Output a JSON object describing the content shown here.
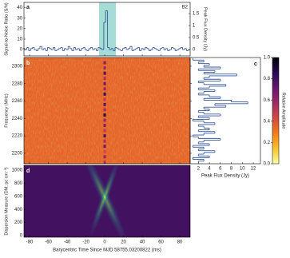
{
  "chart_data": [
    {
      "type": "step",
      "label": "a",
      "annotation": "B2",
      "ylabel": "Signal-to-Noise Ratio (S/N)",
      "y2label": "Peak Flux Density (Jy)",
      "x": [
        -86,
        -84,
        -82,
        -80,
        -78,
        -76,
        -74,
        -72,
        -70,
        -68,
        -66,
        -64,
        -62,
        -60,
        -58,
        -56,
        -54,
        -52,
        -50,
        -48,
        -46,
        -44,
        -42,
        -40,
        -38,
        -36,
        -34,
        -32,
        -30,
        -28,
        -26,
        -24,
        -22,
        -20,
        -18,
        -16,
        -14,
        -12,
        -10,
        -8,
        -6,
        -4,
        -2,
        0,
        2,
        4,
        6,
        8,
        10,
        12,
        14,
        16,
        18,
        20,
        22,
        24,
        26,
        28,
        30,
        32,
        34,
        36,
        38,
        40,
        42,
        44,
        46,
        48,
        50,
        52,
        54,
        56,
        58,
        60,
        62,
        64,
        66,
        68,
        70,
        72,
        74,
        76,
        78,
        80,
        82,
        84,
        86,
        88,
        90
      ],
      "series": [
        {
          "color": "#3a5a98",
          "values": [
            1,
            0,
            2,
            -1,
            1,
            2,
            0,
            -1,
            1,
            3,
            0,
            1,
            -1,
            2,
            1,
            0,
            2,
            -1,
            0,
            1,
            2,
            -1,
            1,
            0,
            3,
            1,
            -1,
            2,
            0,
            1,
            -1,
            1,
            2,
            0,
            -1,
            1,
            2,
            0,
            1,
            -1,
            2,
            1,
            0,
            26,
            37,
            2,
            0,
            1,
            -1,
            2,
            1,
            0,
            -1,
            1,
            2,
            0,
            1,
            3,
            -1,
            0,
            1,
            2,
            -1,
            1,
            0,
            2,
            1,
            -1,
            0,
            2,
            1,
            0,
            -1,
            1,
            2,
            0,
            1,
            -1,
            0,
            2,
            1,
            -1,
            0,
            1,
            2,
            0,
            1,
            -1,
            0
          ]
        }
      ],
      "xlim": [
        -86,
        91
      ],
      "ylim": [
        -6,
        45
      ],
      "yticks": [
        0,
        10,
        20,
        30,
        40
      ],
      "y2lim": [
        -0.27,
        1.97
      ],
      "y2ticks": [
        0,
        0.5,
        1,
        1.5
      ],
      "highlight": [
        -6,
        12
      ],
      "highlight_color": "#8fd3cb"
    },
    {
      "type": "heatmap",
      "label": "b",
      "ylabel": "Frequency (MHz)",
      "xlim": [
        -86,
        91
      ],
      "ylim": [
        2188,
        2310
      ],
      "yticks": [
        2200,
        2220,
        2240,
        2260,
        2280,
        2300
      ],
      "background": 0.35,
      "x": 0,
      "y": [
        2190,
        2196,
        2202,
        2208,
        2214,
        2220,
        2226,
        2232,
        2238,
        2244,
        2250,
        2256,
        2262,
        2268,
        2274,
        2280,
        2286,
        2292,
        2298,
        2304
      ],
      "values": [
        0.5,
        0.6,
        0.45,
        0.7,
        0.55,
        0.8,
        0.5,
        0.65,
        0.6,
        0.9,
        0.55,
        0.75,
        0.5,
        0.85,
        0.6,
        0.7,
        0.55,
        0.8,
        0.6,
        0.65
      ]
    },
    {
      "type": "step",
      "orientation": "horizontal",
      "label": "c",
      "xlabel": "Peak Flux Density (Jy)",
      "color": "#3a5a98",
      "xlim": [
        0.5,
        13.3
      ],
      "xticks": [
        2,
        4,
        6,
        8,
        10,
        12
      ],
      "ylim": [
        2188,
        2310
      ],
      "y": [
        2190,
        2192,
        2194,
        2196,
        2198,
        2200,
        2202,
        2204,
        2206,
        2208,
        2210,
        2212,
        2214,
        2216,
        2218,
        2220,
        2222,
        2224,
        2226,
        2228,
        2230,
        2232,
        2234,
        2236,
        2238,
        2240,
        2242,
        2244,
        2246,
        2248,
        2250,
        2252,
        2254,
        2256,
        2258,
        2260,
        2262,
        2264,
        2266,
        2268,
        2270,
        2272,
        2274,
        2276,
        2278,
        2280,
        2282,
        2284,
        2286,
        2288,
        2290,
        2292,
        2294,
        2296,
        2298,
        2300,
        2302,
        2304,
        2306,
        2308
      ],
      "values": [
        2,
        3,
        1,
        4,
        2,
        3,
        5,
        2,
        3,
        1,
        4,
        2,
        3,
        6,
        2,
        1,
        3,
        5,
        2,
        4,
        3,
        2,
        5,
        3,
        1,
        4,
        2,
        6,
        3,
        2,
        4,
        3,
        7,
        5,
        11,
        8,
        3,
        6,
        4,
        2,
        3,
        5,
        2,
        4,
        7,
        3,
        2,
        6,
        3,
        4,
        9,
        3,
        5,
        2,
        6,
        3,
        4,
        2,
        3,
        1
      ]
    },
    {
      "type": "colorbar",
      "ylabel": "Relative Amplitude",
      "ylim": [
        0,
        1
      ],
      "yticks": [
        {
          "value": 0,
          "label": "0.0"
        },
        0.2,
        0.4,
        0.6,
        0.8,
        {
          "value": 1,
          "label": "1.0"
        }
      ],
      "colormap": [
        "#fcffa4",
        "#fac228",
        "#f57d15",
        "#d44842",
        "#9f2a63",
        "#65156e",
        "#280b54",
        "#000004"
      ]
    },
    {
      "type": "heatmap",
      "label": "d",
      "xlabel": "Barycentric Time Since MJD 58755.03200822 (ms)",
      "ylabel": "Dispersion Measure (DM; pc cm⁻³)",
      "xlim": [
        -86,
        91
      ],
      "xticks": [
        -80,
        -60,
        -40,
        -20,
        0,
        20,
        40,
        60,
        80
      ],
      "ylim": [
        -24,
        1073
      ],
      "yticks": [
        0,
        200,
        400,
        600,
        800,
        1000
      ],
      "colormap": [
        "#440154",
        "#3b528b",
        "#21918c",
        "#5ec962",
        "#fde725"
      ],
      "background": 0.05,
      "peak": {
        "x": 0,
        "y": 588
      }
    }
  ]
}
